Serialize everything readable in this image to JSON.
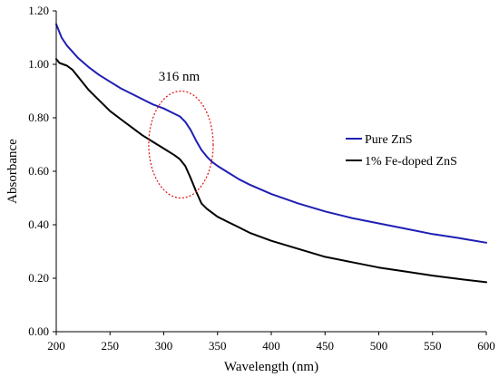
{
  "chart_data": {
    "type": "line",
    "title": "",
    "xlabel": "Wavelength (nm)",
    "ylabel": "Absorbance",
    "xlim": [
      200,
      600
    ],
    "ylim": [
      0,
      1.2
    ],
    "x_ticks": [
      200,
      250,
      300,
      350,
      400,
      450,
      500,
      550,
      600
    ],
    "y_ticks": [
      "0.00",
      "0.20",
      "0.40",
      "0.60",
      "0.80",
      "1.00",
      "1.20"
    ],
    "grid": false,
    "legend_position": "right",
    "series": [
      {
        "name": "Pure ZnS",
        "color": "#1f1fb4",
        "points": [
          [
            200,
            1.15
          ],
          [
            205,
            1.1
          ],
          [
            210,
            1.07
          ],
          [
            220,
            1.025
          ],
          [
            230,
            0.99
          ],
          [
            240,
            0.96
          ],
          [
            250,
            0.935
          ],
          [
            260,
            0.91
          ],
          [
            270,
            0.89
          ],
          [
            280,
            0.87
          ],
          [
            290,
            0.85
          ],
          [
            300,
            0.835
          ],
          [
            310,
            0.815
          ],
          [
            315,
            0.805
          ],
          [
            320,
            0.785
          ],
          [
            325,
            0.755
          ],
          [
            330,
            0.715
          ],
          [
            335,
            0.68
          ],
          [
            340,
            0.655
          ],
          [
            345,
            0.635
          ],
          [
            350,
            0.62
          ],
          [
            360,
            0.595
          ],
          [
            370,
            0.57
          ],
          [
            380,
            0.55
          ],
          [
            400,
            0.515
          ],
          [
            425,
            0.48
          ],
          [
            450,
            0.45
          ],
          [
            475,
            0.425
          ],
          [
            500,
            0.405
          ],
          [
            525,
            0.385
          ],
          [
            550,
            0.365
          ],
          [
            575,
            0.35
          ],
          [
            600,
            0.333
          ]
        ]
      },
      {
        "name": "1% Fe-doped ZnS",
        "color": "#000000",
        "points": [
          [
            200,
            1.02
          ],
          [
            203,
            1.005
          ],
          [
            210,
            0.995
          ],
          [
            215,
            0.98
          ],
          [
            220,
            0.955
          ],
          [
            230,
            0.905
          ],
          [
            240,
            0.865
          ],
          [
            250,
            0.825
          ],
          [
            260,
            0.795
          ],
          [
            270,
            0.765
          ],
          [
            280,
            0.735
          ],
          [
            290,
            0.71
          ],
          [
            300,
            0.685
          ],
          [
            310,
            0.66
          ],
          [
            315,
            0.645
          ],
          [
            320,
            0.62
          ],
          [
            325,
            0.575
          ],
          [
            330,
            0.525
          ],
          [
            335,
            0.48
          ],
          [
            340,
            0.46
          ],
          [
            350,
            0.43
          ],
          [
            360,
            0.41
          ],
          [
            370,
            0.39
          ],
          [
            380,
            0.37
          ],
          [
            400,
            0.34
          ],
          [
            425,
            0.31
          ],
          [
            450,
            0.28
          ],
          [
            475,
            0.26
          ],
          [
            500,
            0.24
          ],
          [
            525,
            0.225
          ],
          [
            550,
            0.21
          ],
          [
            575,
            0.197
          ],
          [
            600,
            0.185
          ]
        ]
      }
    ],
    "annotation": {
      "label": "316 nm",
      "center": [
        316,
        0.7
      ],
      "radius_x": 30,
      "radius_y": 0.2,
      "color": "#e01010"
    }
  }
}
